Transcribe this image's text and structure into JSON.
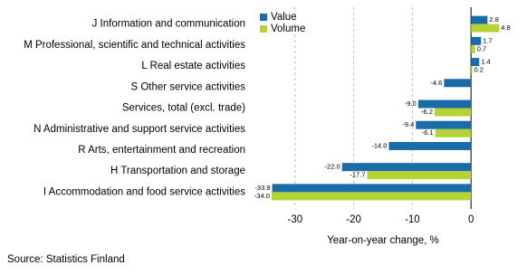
{
  "chart_data": {
    "type": "bar",
    "orientation": "horizontal",
    "categories": [
      "J Information and communication",
      "M Professional, scientific and technical activities",
      "L Real estate activities",
      "S Other service activities",
      "Services, total (excl. trade)",
      "N Administrative and support service activities",
      "R Arts, entertainment and recreation",
      "H Transportation and storage",
      "I Accommodation and food service activities"
    ],
    "series": [
      {
        "name": "Value",
        "color": "#1a6ca8",
        "values": [
          2.8,
          1.7,
          1.4,
          -4.6,
          -9.0,
          -9.4,
          -14.0,
          -22.0,
          -33.9
        ],
        "value_labels": [
          "2.8",
          "1.7",
          "1.4",
          "-4.6",
          "-9.0",
          "-9.4",
          "-14.0",
          "-22.0",
          "-33.9"
        ]
      },
      {
        "name": "Volume",
        "color": "#b5d335",
        "values": [
          4.8,
          0.7,
          0.2,
          null,
          -6.2,
          -6.1,
          null,
          -17.7,
          -34.0
        ],
        "value_labels": [
          "4.8",
          "0.7",
          "0.2",
          null,
          "-6.2",
          "-6.1",
          null,
          "-17.7",
          "-34.0"
        ]
      }
    ],
    "xlim": [
      -38,
      8
    ],
    "xticks": [
      -30,
      -20,
      -10,
      0
    ],
    "grid": true,
    "xlabel": "Year-on-year change, %",
    "source": "Source: Statistics Finland"
  }
}
